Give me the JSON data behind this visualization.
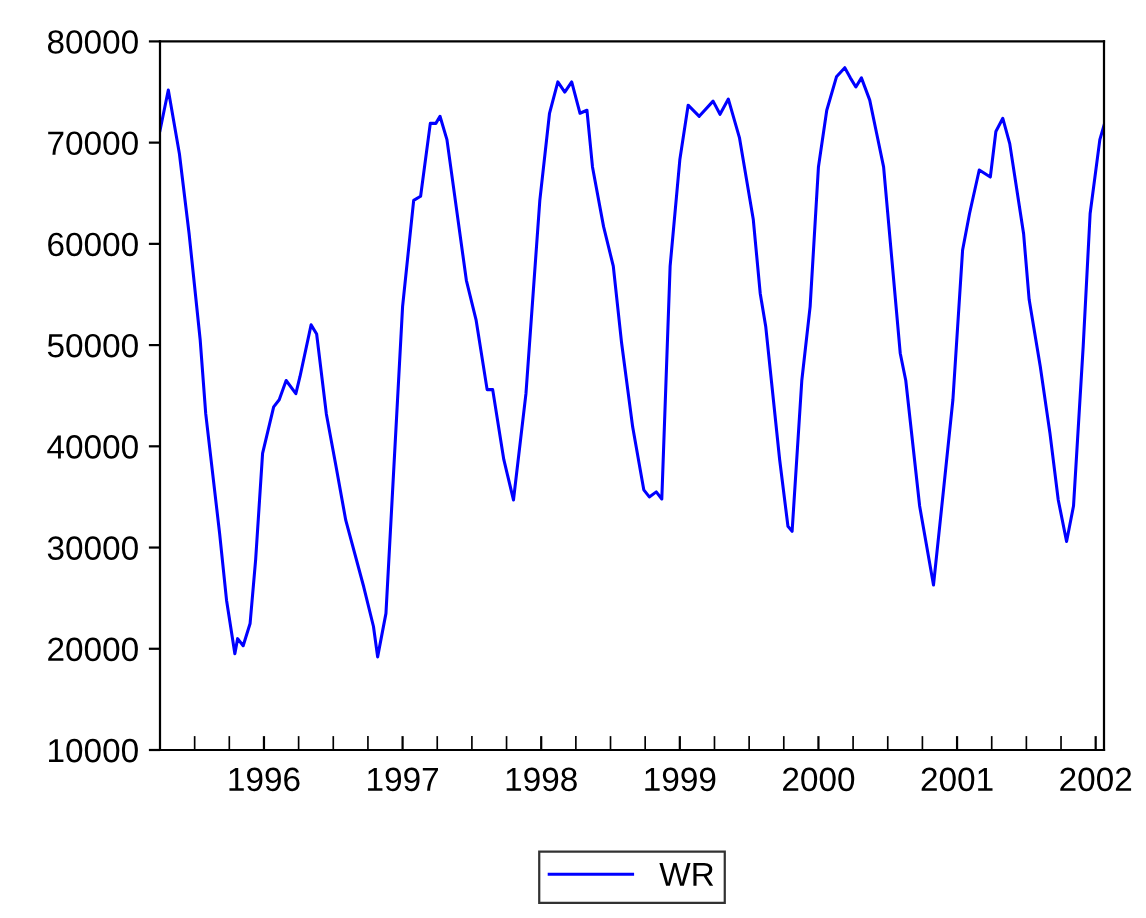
{
  "chart_data": {
    "type": "line",
    "x": [
      1995.75,
      1995.81,
      1995.89,
      1995.96,
      1996.04,
      1996.08,
      1996.18,
      1996.23,
      1996.29,
      1996.31,
      1996.35,
      1996.4,
      1996.44,
      1996.49,
      1996.57,
      1996.61,
      1996.66,
      1996.73,
      1996.76,
      1996.84,
      1996.88,
      1996.95,
      1997.02,
      1997.09,
      1997.22,
      1997.29,
      1997.32,
      1997.38,
      1997.5,
      1997.58,
      1997.63,
      1997.7,
      1997.74,
      1997.77,
      1997.82,
      1997.96,
      1998.03,
      1998.11,
      1998.15,
      1998.23,
      1998.3,
      1998.39,
      1998.49,
      1998.56,
      1998.62,
      1998.67,
      1998.72,
      1998.78,
      1998.83,
      1998.87,
      1998.95,
      1999.02,
      1999.08,
      1999.16,
      1999.24,
      1999.28,
      1999.33,
      1999.37,
      1999.43,
      1999.5,
      1999.56,
      1999.64,
      1999.74,
      1999.79,
      1999.85,
      1999.93,
      2000.03,
      2000.08,
      2000.12,
      2000.22,
      2000.28,
      2000.31,
      2000.38,
      2000.44,
      2000.5,
      2000.56,
      2000.63,
      2000.69,
      2000.73,
      2000.77,
      2000.81,
      2000.87,
      2000.92,
      2000.97,
      2001.09,
      2001.13,
      2001.23,
      2001.33,
      2001.4,
      2001.47,
      2001.54,
      2001.59,
      2001.66,
      2001.74,
      2001.78,
      2001.83,
      2001.88,
      2001.98,
      2002.02,
      2002.1,
      2002.17,
      2002.23,
      2002.29,
      2002.34,
      2002.41,
      2002.46,
      2002.53,
      2002.56
    ],
    "series": [
      {
        "name": "WR",
        "color": "#0000ff",
        "values": [
          71200,
          75200,
          68900,
          61000,
          50500,
          43200,
          31400,
          24800,
          19500,
          21000,
          20300,
          22500,
          28800,
          39300,
          43900,
          44600,
          46500,
          45200,
          46900,
          52000,
          51100,
          43200,
          38000,
          32700,
          26100,
          22200,
          19200,
          23500,
          53800,
          64300,
          64700,
          71900,
          71900,
          72600,
          70300,
          56400,
          52500,
          45600,
          45600,
          38700,
          34700,
          45200,
          64300,
          72900,
          76000,
          75000,
          76000,
          72900,
          73200,
          67600,
          61700,
          57800,
          50200,
          41900,
          35700,
          35000,
          35500,
          34800,
          57800,
          68300,
          73700,
          72600,
          74100,
          72800,
          74300,
          70500,
          62400,
          55100,
          51800,
          38700,
          32100,
          31600,
          46500,
          53800,
          67600,
          73200,
          76500,
          77400,
          76400,
          75500,
          76400,
          74200,
          70900,
          67600,
          49200,
          46500,
          34100,
          26300,
          35400,
          44600,
          59400,
          63000,
          67300,
          66600,
          71100,
          72400,
          69900,
          61000,
          54500,
          47900,
          41300,
          34700,
          30600,
          34100,
          49900,
          63000,
          70300,
          71700
        ]
      }
    ],
    "xlim": [
      1995.75,
      2002.56
    ],
    "xticks": [
      {
        "value": 1996,
        "label": null
      },
      {
        "value": 1996.25,
        "label": null
      },
      {
        "value": 1996.5,
        "label": "1996"
      },
      {
        "value": 1996.75,
        "label": null
      },
      {
        "value": 1997,
        "label": null
      },
      {
        "value": 1997.25,
        "label": null
      },
      {
        "value": 1997.5,
        "label": "1997"
      },
      {
        "value": 1997.75,
        "label": null
      },
      {
        "value": 1998,
        "label": null
      },
      {
        "value": 1998.25,
        "label": null
      },
      {
        "value": 1998.5,
        "label": "1998"
      },
      {
        "value": 1998.75,
        "label": null
      },
      {
        "value": 1999,
        "label": null
      },
      {
        "value": 1999.25,
        "label": null
      },
      {
        "value": 1999.5,
        "label": "1999"
      },
      {
        "value": 1999.75,
        "label": null
      },
      {
        "value": 2000,
        "label": null
      },
      {
        "value": 2000.25,
        "label": null
      },
      {
        "value": 2000.5,
        "label": "2000"
      },
      {
        "value": 2000.75,
        "label": null
      },
      {
        "value": 2001,
        "label": null
      },
      {
        "value": 2001.25,
        "label": null
      },
      {
        "value": 2001.5,
        "label": "2001"
      },
      {
        "value": 2001.75,
        "label": null
      },
      {
        "value": 2002,
        "label": null
      },
      {
        "value": 2002.25,
        "label": null
      },
      {
        "value": 2002.5,
        "label": "2002"
      }
    ],
    "ylim": [
      10000,
      80000
    ],
    "yticks": [
      10000,
      20000,
      30000,
      40000,
      50000,
      60000,
      70000,
      80000
    ],
    "grid": false,
    "legend": "bottom",
    "marker": "none",
    "line_style": "solid"
  }
}
